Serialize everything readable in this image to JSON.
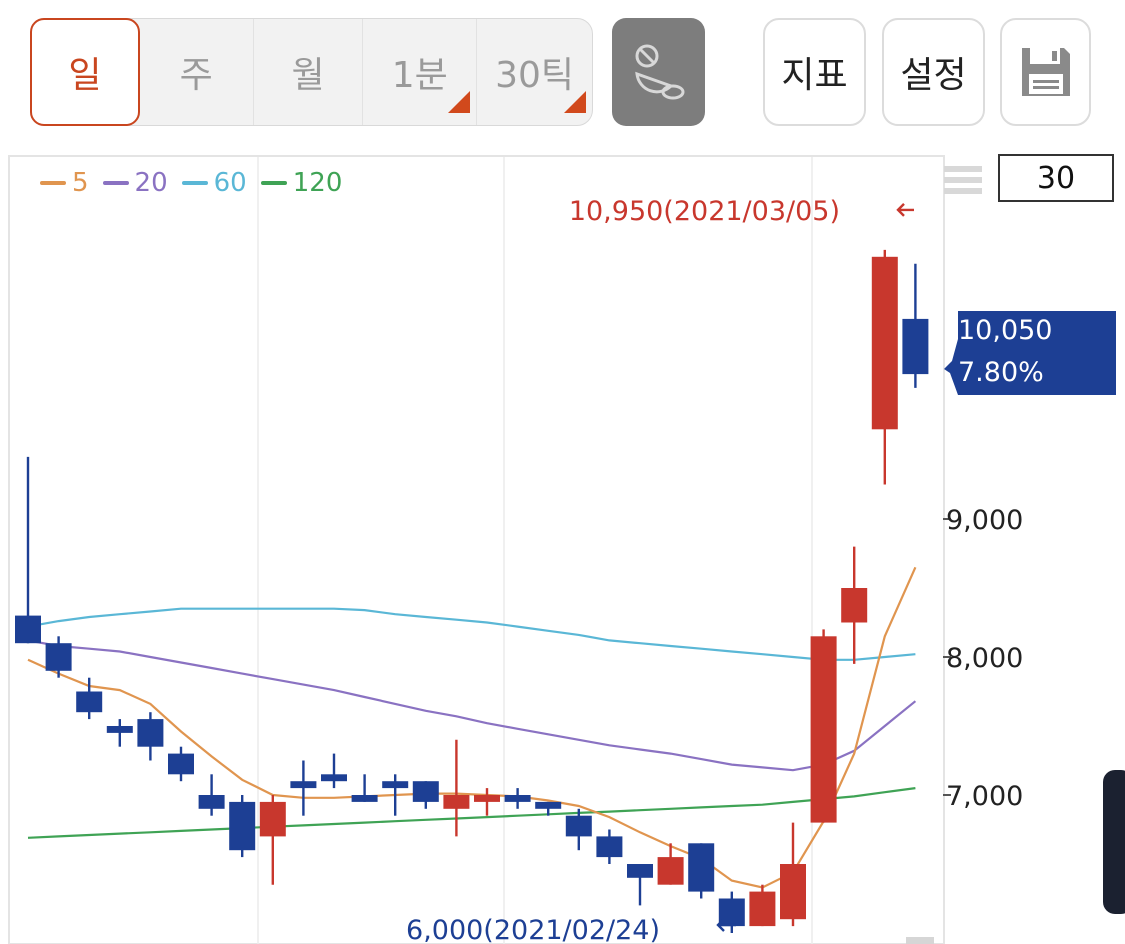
{
  "toolbar": {
    "periods": [
      {
        "label": "일",
        "active": true,
        "has_corner": false
      },
      {
        "label": "주",
        "active": false,
        "has_corner": false
      },
      {
        "label": "월",
        "active": false,
        "has_corner": false
      },
      {
        "label": "1분",
        "active": false,
        "has_corner": true
      },
      {
        "label": "30틱",
        "active": false,
        "has_corner": true
      }
    ],
    "chart_type_icon": "chart-style-icon",
    "indicator_label": "지표",
    "settings_label": "설정",
    "save_icon": "save-icon",
    "accent_color": "#c9461f"
  },
  "chart_controls": {
    "count_value": "30",
    "menu_icon": "menu-lines-icon"
  },
  "chart_data": {
    "type": "candlestick",
    "legend_placement": "top-left",
    "ma_legend": [
      {
        "label": "5",
        "color": "#e0954f"
      },
      {
        "label": "20",
        "color": "#8a72c2"
      },
      {
        "label": "60",
        "color": "#5ab7d6"
      },
      {
        "label": "120",
        "color": "#3fa355"
      }
    ],
    "y_ticks": [
      "9,000",
      "8,000",
      "7,000"
    ],
    "y_tick_values": [
      9000,
      8000,
      7000
    ],
    "y_range": [
      5850,
      11650
    ],
    "up_color": "#c8372d",
    "down_color": "#1d3f94",
    "high_annotation": "10,950(2021/03/05)",
    "high_value": 10950,
    "low_annotation": "6,000(2021/02/24)",
    "low_value": 6000,
    "current_price": "10,050",
    "current_change": "7.80%",
    "current_tag_color": "#1d3f94",
    "candles": [
      {
        "o": 8300,
        "h": 9450,
        "l": 8100,
        "c": 8100
      },
      {
        "o": 8100,
        "h": 8150,
        "l": 7850,
        "c": 7900
      },
      {
        "o": 7750,
        "h": 7850,
        "l": 7550,
        "c": 7600
      },
      {
        "o": 7500,
        "h": 7550,
        "l": 7350,
        "c": 7450
      },
      {
        "o": 7550,
        "h": 7600,
        "l": 7250,
        "c": 7350
      },
      {
        "o": 7300,
        "h": 7350,
        "l": 7100,
        "c": 7150
      },
      {
        "o": 7000,
        "h": 7150,
        "l": 6850,
        "c": 6900
      },
      {
        "o": 6950,
        "h": 7000,
        "l": 6550,
        "c": 6600
      },
      {
        "o": 6700,
        "h": 7000,
        "l": 6350,
        "c": 6950
      },
      {
        "o": 7100,
        "h": 7250,
        "l": 6850,
        "c": 7050
      },
      {
        "o": 7150,
        "h": 7300,
        "l": 7050,
        "c": 7100
      },
      {
        "o": 7000,
        "h": 7150,
        "l": 6950,
        "c": 6950
      },
      {
        "o": 7100,
        "h": 7150,
        "l": 6850,
        "c": 7050
      },
      {
        "o": 7100,
        "h": 7100,
        "l": 6900,
        "c": 6950
      },
      {
        "o": 6900,
        "h": 7400,
        "l": 6700,
        "c": 7000
      },
      {
        "o": 6950,
        "h": 7050,
        "l": 6850,
        "c": 7000
      },
      {
        "o": 7000,
        "h": 7050,
        "l": 6900,
        "c": 6950
      },
      {
        "o": 6950,
        "h": 6950,
        "l": 6850,
        "c": 6900
      },
      {
        "o": 6850,
        "h": 6900,
        "l": 6600,
        "c": 6700
      },
      {
        "o": 6700,
        "h": 6750,
        "l": 6500,
        "c": 6550
      },
      {
        "o": 6500,
        "h": 6500,
        "l": 6200,
        "c": 6400
      },
      {
        "o": 6350,
        "h": 6650,
        "l": 6350,
        "c": 6550
      },
      {
        "o": 6650,
        "h": 6650,
        "l": 6250,
        "c": 6300
      },
      {
        "o": 6250,
        "h": 6300,
        "l": 6000,
        "c": 6050
      },
      {
        "o": 6050,
        "h": 6350,
        "l": 6050,
        "c": 6300
      },
      {
        "o": 6100,
        "h": 6800,
        "l": 6050,
        "c": 6500
      },
      {
        "o": 6800,
        "h": 8200,
        "l": 6800,
        "c": 8150
      },
      {
        "o": 8250,
        "h": 8800,
        "l": 7950,
        "c": 8500
      },
      {
        "o": 9650,
        "h": 10950,
        "l": 9250,
        "c": 10900
      },
      {
        "o": 10450,
        "h": 10850,
        "l": 9950,
        "c": 10050
      }
    ],
    "ma5": [
      7980,
      7880,
      7790,
      7760,
      7660,
      7460,
      7280,
      7110,
      7000,
      6980,
      6980,
      6990,
      7000,
      7010,
      7010,
      7000,
      6990,
      6960,
      6920,
      6840,
      6730,
      6630,
      6540,
      6380,
      6330,
      6440,
      6810,
      7300,
      8150,
      8650
    ],
    "ma20": [
      8120,
      8080,
      8060,
      8040,
      8000,
      7960,
      7920,
      7880,
      7840,
      7800,
      7760,
      7710,
      7660,
      7610,
      7570,
      7520,
      7480,
      7440,
      7400,
      7360,
      7330,
      7300,
      7260,
      7220,
      7200,
      7180,
      7220,
      7320,
      7500,
      7680
    ],
    "ma60": [
      8220,
      8260,
      8290,
      8310,
      8330,
      8350,
      8350,
      8350,
      8350,
      8350,
      8350,
      8340,
      8310,
      8290,
      8270,
      8250,
      8220,
      8190,
      8160,
      8120,
      8100,
      8080,
      8060,
      8040,
      8020,
      8000,
      7980,
      7980,
      8000,
      8020
    ],
    "ma120": [
      6690,
      6700,
      6710,
      6720,
      6730,
      6740,
      6750,
      6760,
      6770,
      6780,
      6790,
      6800,
      6810,
      6820,
      6830,
      6840,
      6850,
      6860,
      6870,
      6880,
      6890,
      6900,
      6910,
      6920,
      6930,
      6950,
      6970,
      6990,
      7020,
      7050
    ]
  }
}
